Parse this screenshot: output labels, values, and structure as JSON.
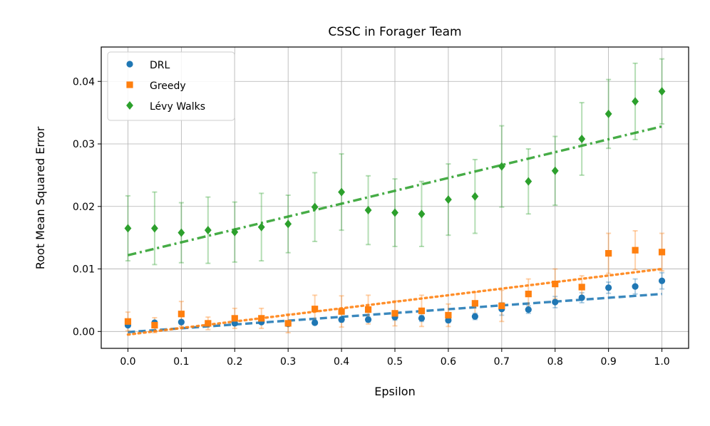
{
  "chart_data": {
    "type": "scatter",
    "title": "CSSC in Forager Team",
    "xlabel": "Epsilon",
    "ylabel": "Root Mean Squared Error",
    "xlim": [
      -0.05,
      1.05
    ],
    "ylim": [
      -0.0027,
      0.0455
    ],
    "xticks": [
      0.0,
      0.1,
      0.2,
      0.3,
      0.4,
      0.5,
      0.6,
      0.7,
      0.8,
      0.9,
      1.0
    ],
    "xtick_labels": [
      "0.0",
      "0.1",
      "0.2",
      "0.3",
      "0.4",
      "0.5",
      "0.6",
      "0.7",
      "0.8",
      "0.9",
      "1.0"
    ],
    "yticks": [
      0.0,
      0.01,
      0.02,
      0.03,
      0.04
    ],
    "ytick_labels": [
      "0.00",
      "0.01",
      "0.02",
      "0.03",
      "0.04"
    ],
    "grid": true,
    "legend_position": "top-left",
    "x": [
      0.0,
      0.05,
      0.1,
      0.15,
      0.2,
      0.25,
      0.3,
      0.35,
      0.4,
      0.45,
      0.5,
      0.55,
      0.6,
      0.65,
      0.7,
      0.75,
      0.8,
      0.85,
      0.9,
      0.95,
      1.0
    ],
    "series": [
      {
        "name": "DRL",
        "marker": "circle",
        "color": "#1f77b4",
        "line_style": "dashed",
        "values": [
          0.001,
          0.0014,
          0.0015,
          0.0012,
          0.0013,
          0.0015,
          0.0012,
          0.0014,
          0.0019,
          0.0019,
          0.0023,
          0.0021,
          0.0018,
          0.0024,
          0.0036,
          0.0035,
          0.0047,
          0.0054,
          0.007,
          0.0072,
          0.0081
        ],
        "errors": [
          0.0003,
          0.0003,
          0.0003,
          0.0003,
          0.0003,
          0.0003,
          0.0003,
          0.0003,
          0.0004,
          0.0004,
          0.0005,
          0.0005,
          0.0004,
          0.0005,
          0.001,
          0.0006,
          0.0009,
          0.0008,
          0.0009,
          0.0012,
          0.0013
        ],
        "fit": [
          -0.0001,
          0.006
        ]
      },
      {
        "name": "Greedy",
        "marker": "square",
        "color": "#ff7f0e",
        "line_style": "dotted",
        "values": [
          0.0016,
          0.001,
          0.0028,
          0.0013,
          0.0021,
          0.0021,
          0.0013,
          0.0036,
          0.0032,
          0.0035,
          0.0029,
          0.0033,
          0.0026,
          0.0045,
          0.0041,
          0.006,
          0.0076,
          0.0071,
          0.0125,
          0.013,
          0.0127
        ],
        "errors": [
          0.0015,
          0.0012,
          0.002,
          0.001,
          0.0016,
          0.0016,
          0.0015,
          0.0022,
          0.0025,
          0.0023,
          0.002,
          0.0025,
          0.0018,
          0.0018,
          0.0025,
          0.0024,
          0.0024,
          0.0018,
          0.0032,
          0.0031,
          0.003
        ],
        "fit": [
          -0.0005,
          0.01
        ]
      },
      {
        "name": "Lévy Walks",
        "marker": "diamond",
        "color": "#2ca02c",
        "line_style": "dashdot",
        "values": [
          0.0165,
          0.0165,
          0.0158,
          0.0162,
          0.0159,
          0.0167,
          0.0172,
          0.0199,
          0.0223,
          0.0194,
          0.019,
          0.0188,
          0.0211,
          0.0216,
          0.0264,
          0.024,
          0.0257,
          0.0308,
          0.0348,
          0.0368,
          0.0384
        ],
        "errors": [
          0.0052,
          0.0058,
          0.0048,
          0.0053,
          0.0048,
          0.0054,
          0.0046,
          0.0055,
          0.0061,
          0.0055,
          0.0054,
          0.0052,
          0.0057,
          0.0059,
          0.0065,
          0.0052,
          0.0055,
          0.0058,
          0.0055,
          0.0061,
          0.0052
        ],
        "fit": [
          0.0122,
          0.0328
        ]
      }
    ]
  }
}
